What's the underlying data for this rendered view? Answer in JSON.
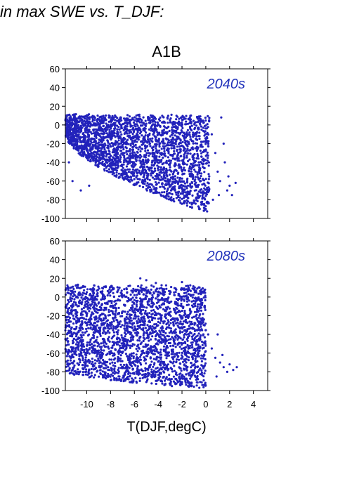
{
  "header": {
    "text": "in max SWE vs. T_DJF:"
  },
  "chart_data": [
    {
      "type": "scatter",
      "title": "A1B",
      "annotation": "2040s",
      "xlabel": "",
      "ylabel": "",
      "xlim": [
        -11.8,
        5.2
      ],
      "ylim": [
        -100,
        60
      ],
      "yticks": [
        -100,
        -80,
        -60,
        -40,
        -20,
        0,
        20,
        40,
        60
      ],
      "xticks": [
        -10,
        -8,
        -6,
        -4,
        -2,
        0,
        2,
        4
      ],
      "show_x_tick_labels": false,
      "grid": false,
      "point_color": "#2222bb",
      "annotation_color": "#2233bb",
      "cloud_description": {
        "x_range": [
          -11.8,
          0.3
        ],
        "y_top": 12,
        "y_bottom_at_left": -10,
        "y_bottom_at_right": -95,
        "sparse_outliers": [
          [
            -11.5,
            -40
          ],
          [
            -11.2,
            -60
          ],
          [
            -10.5,
            -70
          ],
          [
            -9.8,
            -65
          ],
          [
            0.5,
            -10
          ],
          [
            0.8,
            -30
          ],
          [
            1.0,
            -50
          ],
          [
            1.2,
            -60
          ],
          [
            1.3,
            8
          ],
          [
            1.6,
            -40
          ],
          [
            1.8,
            -70
          ],
          [
            2.0,
            -65
          ],
          [
            2.2,
            -75
          ],
          [
            2.5,
            -62
          ],
          [
            1.5,
            -20
          ],
          [
            0.6,
            -80
          ],
          [
            1.1,
            -75
          ],
          [
            1.9,
            -55
          ]
        ]
      }
    },
    {
      "type": "scatter",
      "title": "",
      "annotation": "2080s",
      "xlabel": "T(DJF,degC)",
      "ylabel": "",
      "xlim": [
        -11.8,
        5.2
      ],
      "ylim": [
        -100,
        60
      ],
      "yticks": [
        -100,
        -80,
        -60,
        -40,
        -20,
        0,
        20,
        40,
        60
      ],
      "xticks": [
        -10,
        -8,
        -6,
        -4,
        -2,
        0,
        2,
        4
      ],
      "show_x_tick_labels": true,
      "grid": false,
      "point_color": "#2222bb",
      "annotation_color": "#2233bb",
      "cloud_description": {
        "x_range": [
          -11.8,
          0.0
        ],
        "y_top": 14,
        "y_bottom_at_left": -80,
        "y_bottom_at_right": -98,
        "sparse_outliers": [
          [
            -5.5,
            20
          ],
          [
            -5.0,
            18
          ],
          [
            -4.2,
            15
          ],
          [
            -2.0,
            16
          ],
          [
            -1.5,
            12
          ],
          [
            0.2,
            -40
          ],
          [
            0.5,
            -55
          ],
          [
            0.8,
            -65
          ],
          [
            1.0,
            -40
          ],
          [
            1.2,
            -70
          ],
          [
            1.5,
            -75
          ],
          [
            1.8,
            -80
          ],
          [
            2.0,
            -72
          ],
          [
            2.3,
            -78
          ],
          [
            2.6,
            -75
          ],
          [
            0.9,
            -85
          ],
          [
            1.4,
            -62
          ],
          [
            -11.6,
            -15
          ]
        ]
      }
    }
  ]
}
